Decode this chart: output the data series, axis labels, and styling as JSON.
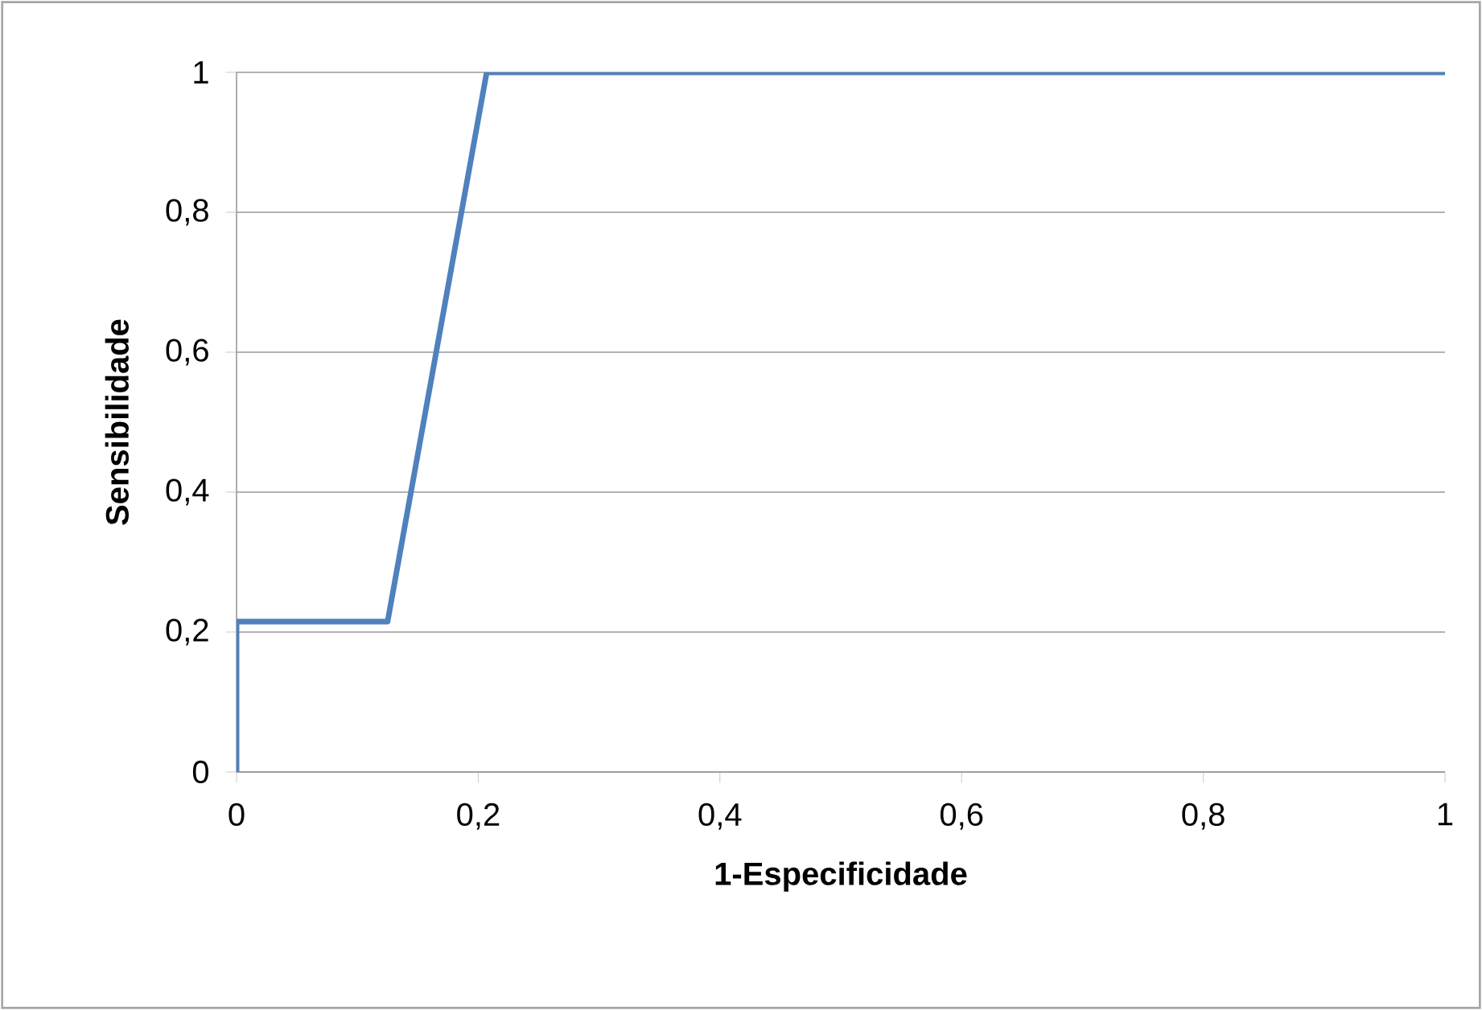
{
  "chart_data": {
    "type": "line",
    "xlabel": "1-Especificidade",
    "ylabel": "Sensibilidade",
    "x": [
      0,
      0,
      0.125,
      0.207,
      1
    ],
    "series": [
      {
        "color": "#4f81bd",
        "values": [
          0,
          0.215,
          0.215,
          1,
          1
        ]
      }
    ],
    "xlim": [
      0,
      1
    ],
    "ylim": [
      0,
      1
    ],
    "xticks": [
      0,
      {
        "value": 0.2,
        "label": "0,2"
      },
      {
        "value": 0.4,
        "label": "0,4"
      },
      {
        "value": 0.6,
        "label": "0,6"
      },
      {
        "value": 0.8,
        "label": "0,8"
      },
      1
    ],
    "yticks": [
      0,
      {
        "value": 0.2,
        "label": "0,2"
      },
      {
        "value": 0.4,
        "label": "0,4"
      },
      {
        "value": 0.6,
        "label": "0,6"
      },
      {
        "value": 0.8,
        "label": "0,8"
      },
      1
    ],
    "grid": "y",
    "line_style": "solid"
  }
}
